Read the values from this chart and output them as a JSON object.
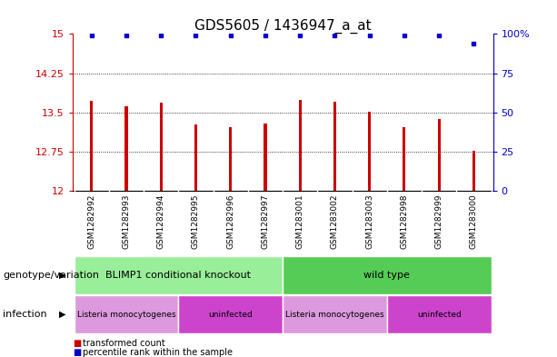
{
  "title": "GDS5605 / 1436947_a_at",
  "samples": [
    "GSM1282992",
    "GSM1282993",
    "GSM1282994",
    "GSM1282995",
    "GSM1282996",
    "GSM1282997",
    "GSM1283001",
    "GSM1283002",
    "GSM1283003",
    "GSM1282998",
    "GSM1282999",
    "GSM1283000"
  ],
  "bar_values": [
    13.72,
    13.62,
    13.69,
    13.27,
    13.22,
    13.28,
    13.74,
    13.71,
    13.52,
    13.22,
    13.38,
    12.77
  ],
  "percentile_values": [
    99,
    99,
    99,
    99,
    99,
    99,
    99,
    99,
    99,
    99,
    99,
    94
  ],
  "ymin": 12,
  "ymax": 15,
  "yticks": [
    12,
    12.75,
    13.5,
    14.25,
    15
  ],
  "ytick_labels": [
    "12",
    "12.75",
    "13.5",
    "14.25",
    "15"
  ],
  "right_yticks": [
    0,
    25,
    50,
    75,
    100
  ],
  "right_ytick_labels": [
    "0",
    "25",
    "50",
    "75",
    "100%"
  ],
  "bar_color": "#cc0000",
  "dot_color": "#0000cc",
  "bar_width": 0.08,
  "genotype_groups": [
    {
      "label": "BLIMP1 conditional knockout",
      "start": 0,
      "end": 6,
      "color": "#99ee99"
    },
    {
      "label": "wild type",
      "start": 6,
      "end": 12,
      "color": "#55cc55"
    }
  ],
  "infection_groups": [
    {
      "label": "Listeria monocytogenes",
      "start": 0,
      "end": 3,
      "color": "#dd99dd"
    },
    {
      "label": "uninfected",
      "start": 3,
      "end": 6,
      "color": "#cc44cc"
    },
    {
      "label": "Listeria monocytogenes",
      "start": 6,
      "end": 9,
      "color": "#dd99dd"
    },
    {
      "label": "uninfected",
      "start": 9,
      "end": 12,
      "color": "#cc44cc"
    }
  ],
  "legend_items": [
    {
      "label": "transformed count",
      "color": "#cc0000"
    },
    {
      "label": "percentile rank within the sample",
      "color": "#0000cc"
    }
  ],
  "background_color": "#ffffff",
  "tick_label_color_left": "#cc0000",
  "tick_label_color_right": "#0000cc",
  "title_fontsize": 11,
  "axis_fontsize": 8,
  "label_fontsize": 8,
  "sample_fontsize": 6.5,
  "sample_bg_color": "#cccccc"
}
